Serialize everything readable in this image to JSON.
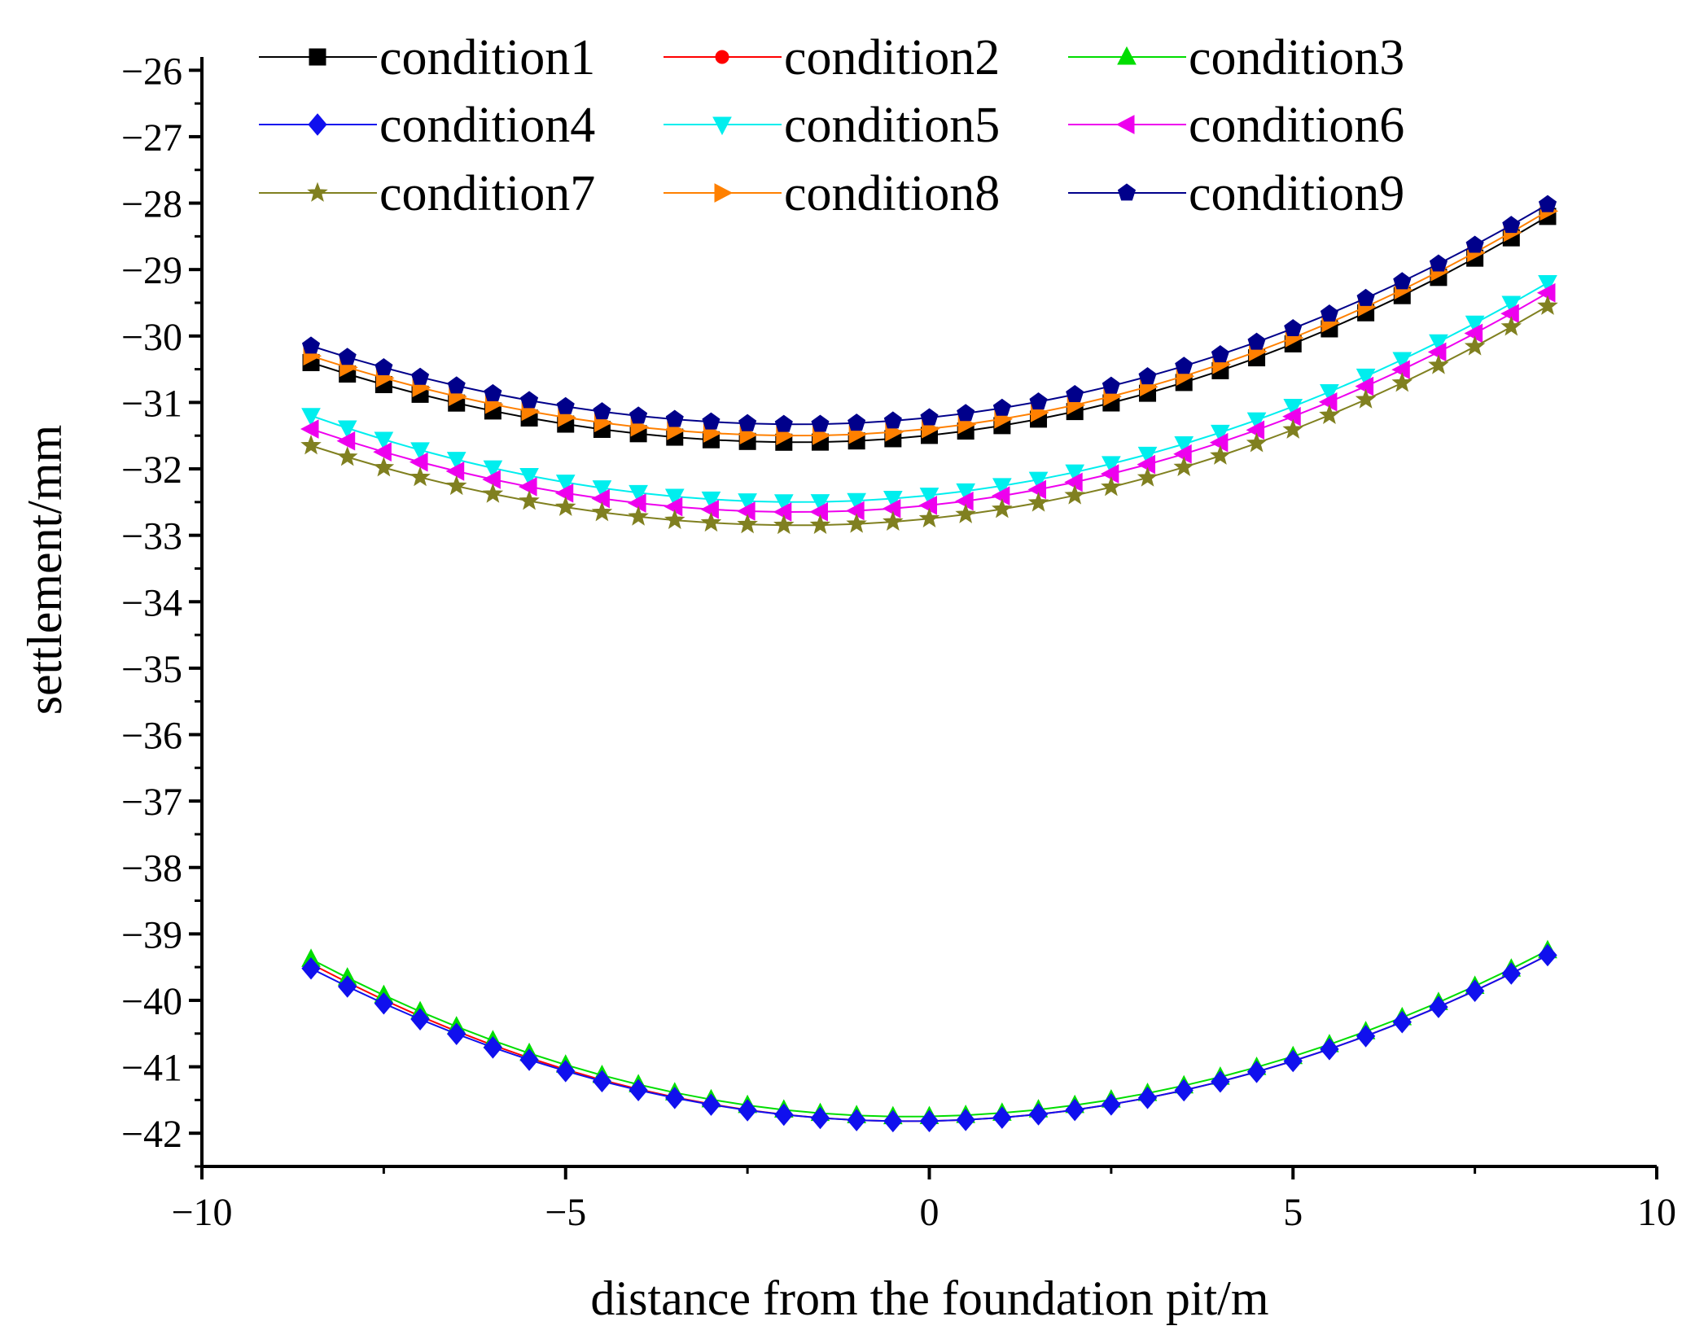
{
  "chart_data": {
    "type": "line",
    "title": "",
    "xlabel": "distance from the foundation pit/m",
    "ylabel": "settlement/mm",
    "xlim": [
      -10,
      10
    ],
    "ylim": [
      -42.5,
      -25.8
    ],
    "xticks": [
      -10,
      -5,
      0,
      5,
      10
    ],
    "xtick_labels": [
      "−10",
      "−5",
      "0",
      "5",
      "10"
    ],
    "yticks": [
      -26,
      -27,
      -28,
      -29,
      -30,
      -31,
      -32,
      -33,
      -34,
      -35,
      -36,
      -37,
      -38,
      -39,
      -40,
      -41,
      -42
    ],
    "ytick_labels": [
      "−26",
      "−27",
      "−28",
      "−29",
      "−30",
      "−31",
      "−32",
      "−33",
      "−34",
      "−35",
      "−36",
      "−37",
      "−38",
      "−39",
      "−40",
      "−41",
      "−42"
    ],
    "grid": false,
    "legend_position": "top",
    "x": [
      -8.5,
      -8.0,
      -7.5,
      -7.0,
      -6.5,
      -6.0,
      -5.5,
      -5.0,
      -4.5,
      -4.0,
      -3.5,
      -3.0,
      -2.5,
      -2.0,
      -1.5,
      -1.0,
      -0.5,
      0.0,
      0.5,
      1.0,
      1.5,
      2.0,
      2.5,
      3.0,
      3.5,
      4.0,
      4.5,
      5.0,
      5.5,
      6.0,
      6.5,
      7.0,
      7.5,
      8.0,
      8.5
    ],
    "series": [
      {
        "name": "condition1",
        "color": "#000000",
        "marker": "square",
        "xmin": -1.8,
        "ymin": -31.6,
        "y0": -30.4,
        "y1": -28.2
      },
      {
        "name": "condition2",
        "color": "#ff0000",
        "marker": "circle",
        "xmin": -0.3,
        "ymin": -41.82,
        "y0": -39.45,
        "y1": -39.32
      },
      {
        "name": "condition3",
        "color": "#00dd00",
        "marker": "triangle-up",
        "xmin": -0.3,
        "ymin": -41.75,
        "y0": -39.38,
        "y1": -39.25
      },
      {
        "name": "condition4",
        "color": "#1010ee",
        "marker": "diamond",
        "xmin": -0.3,
        "ymin": -41.82,
        "y0": -39.52,
        "y1": -39.32
      },
      {
        "name": "condition5",
        "color": "#00eeee",
        "marker": "triangle-down",
        "xmin": -1.8,
        "ymin": -32.5,
        "y0": -31.2,
        "y1": -29.2
      },
      {
        "name": "condition6",
        "color": "#ee00ee",
        "marker": "triangle-left",
        "xmin": -1.8,
        "ymin": -32.65,
        "y0": -31.4,
        "y1": -29.35
      },
      {
        "name": "condition7",
        "color": "#808020",
        "marker": "star",
        "xmin": -1.8,
        "ymin": -32.85,
        "y0": -31.65,
        "y1": -29.55
      },
      {
        "name": "condition8",
        "color": "#ff8000",
        "marker": "triangle-right",
        "xmin": -1.8,
        "ymin": -31.5,
        "y0": -30.3,
        "y1": -28.12
      },
      {
        "name": "condition9",
        "color": "#00008b",
        "marker": "pentagon",
        "xmin": -1.8,
        "ymin": -31.33,
        "y0": -30.15,
        "y1": -28.02
      }
    ]
  }
}
